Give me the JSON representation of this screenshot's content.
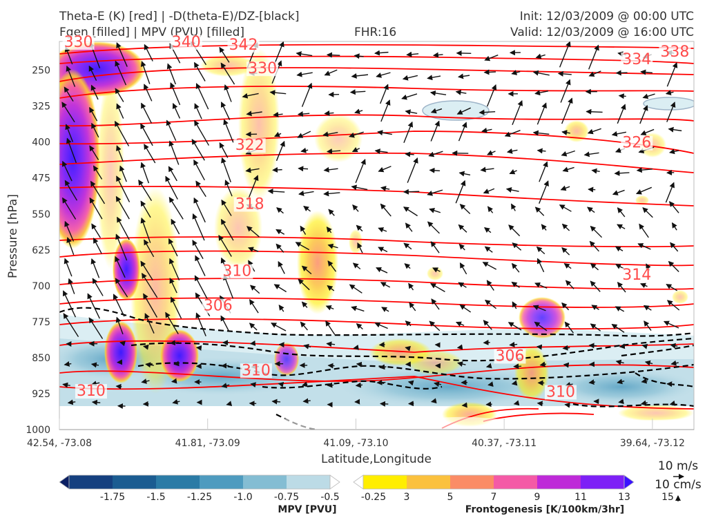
{
  "header": {
    "title_line1": "Theta-E (K) [red] | -D(theta-E)/DZ-[black]",
    "title_line2": "Fgen [filled] | MPV (PVU) [filled]",
    "fhr": "FHR:16",
    "init": "Init: 12/03/2009 @ 00:00 UTC",
    "valid": "Valid: 12/03/2009 @ 16:00 UTC"
  },
  "chart_data": {
    "type": "cross-section",
    "xlabel": "Latitude,Longitude",
    "ylabel": "Pressure [hPa]",
    "x_ticks": [
      "42.54, -73.08",
      "41.81, -73.09",
      "41.09, -73.10",
      "40.37, -73.11",
      "39.64, -73.12"
    ],
    "y_ticks": [
      250,
      325,
      400,
      475,
      550,
      625,
      700,
      775,
      850,
      925,
      1000
    ],
    "ylim": [
      1000,
      190
    ],
    "theta_e_contour_labels": [
      {
        "value": 330,
        "x": 0.03,
        "p": 190
      },
      {
        "value": 340,
        "x": 0.2,
        "p": 190
      },
      {
        "value": 342,
        "x": 0.29,
        "p": 196
      },
      {
        "value": 338,
        "x": 0.97,
        "p": 210
      },
      {
        "value": 334,
        "x": 0.91,
        "p": 226
      },
      {
        "value": 330,
        "x": 0.32,
        "p": 245
      },
      {
        "value": 322,
        "x": 0.3,
        "p": 405
      },
      {
        "value": 326,
        "x": 0.91,
        "p": 400
      },
      {
        "value": 318,
        "x": 0.3,
        "p": 528
      },
      {
        "value": 310,
        "x": 0.28,
        "p": 668
      },
      {
        "value": 314,
        "x": 0.91,
        "p": 676
      },
      {
        "value": 306,
        "x": 0.25,
        "p": 740
      },
      {
        "value": 306,
        "x": 0.71,
        "p": 845
      },
      {
        "value": 310,
        "x": 0.31,
        "p": 875
      },
      {
        "value": 310,
        "x": 0.05,
        "p": 918
      },
      {
        "value": 310,
        "x": 0.79,
        "p": 920
      }
    ],
    "wind_reference": [
      "10 m/s",
      "10 cm/s"
    ],
    "colorbars": [
      {
        "title": "MPV [PVU]",
        "ticks": [
          "-1.75",
          "-1.5",
          "-1.25",
          "-1.0",
          "-0.75",
          "-0.5",
          "-0.25"
        ],
        "colors": [
          "#0b1f63",
          "#15407f",
          "#1b5c91",
          "#2b7ba6",
          "#4e9bbf",
          "#84bdd3",
          "#bcdbe6",
          "#ffffff"
        ]
      },
      {
        "title": "Frontogenesis [K/100km/3hr]",
        "ticks": [
          "3",
          "5",
          "7",
          "9",
          "11",
          "13",
          "15"
        ],
        "colors": [
          "#ffffff",
          "#ffee00",
          "#fbc13e",
          "#fb8c66",
          "#f45aa6",
          "#be2ad8",
          "#7d20f6",
          "#3a12ff"
        ]
      }
    ]
  }
}
